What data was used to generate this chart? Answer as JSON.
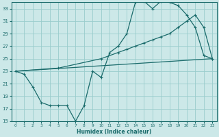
{
  "bg_color": "#cce8e8",
  "grid_color": "#99cccc",
  "line_color": "#1a6b6b",
  "xlabel": "Humidex (Indice chaleur)",
  "xlim": [
    -0.5,
    23.5
  ],
  "ylim": [
    15,
    34
  ],
  "yticks": [
    15,
    17,
    19,
    21,
    23,
    25,
    27,
    29,
    31,
    33
  ],
  "xticks": [
    0,
    1,
    2,
    3,
    4,
    5,
    6,
    7,
    8,
    9,
    10,
    11,
    12,
    13,
    14,
    15,
    16,
    17,
    18,
    19,
    20,
    21,
    22,
    23
  ],
  "curve1_x": [
    0,
    1,
    2,
    3,
    4,
    5,
    6,
    7,
    8,
    9,
    10,
    11,
    12,
    13,
    14,
    15,
    16,
    17,
    18,
    19,
    20,
    21,
    22,
    23
  ],
  "curve1_y": [
    23,
    22.5,
    20.5,
    18,
    17.5,
    17.5,
    17.5,
    15,
    17.5,
    23,
    22,
    26,
    27,
    29,
    34,
    34.2,
    33,
    34.2,
    34,
    33.5,
    32,
    30,
    25.5,
    25
  ],
  "curve2_x": [
    0,
    5,
    10,
    12,
    13,
    14,
    15,
    16,
    17,
    18,
    19,
    20,
    21,
    22,
    23
  ],
  "curve2_y": [
    23,
    23.5,
    25,
    26,
    26.5,
    27,
    27.5,
    28,
    28.5,
    29,
    30,
    31,
    32,
    30,
    25
  ],
  "line3_x": [
    0,
    23
  ],
  "line3_y": [
    23,
    25
  ]
}
